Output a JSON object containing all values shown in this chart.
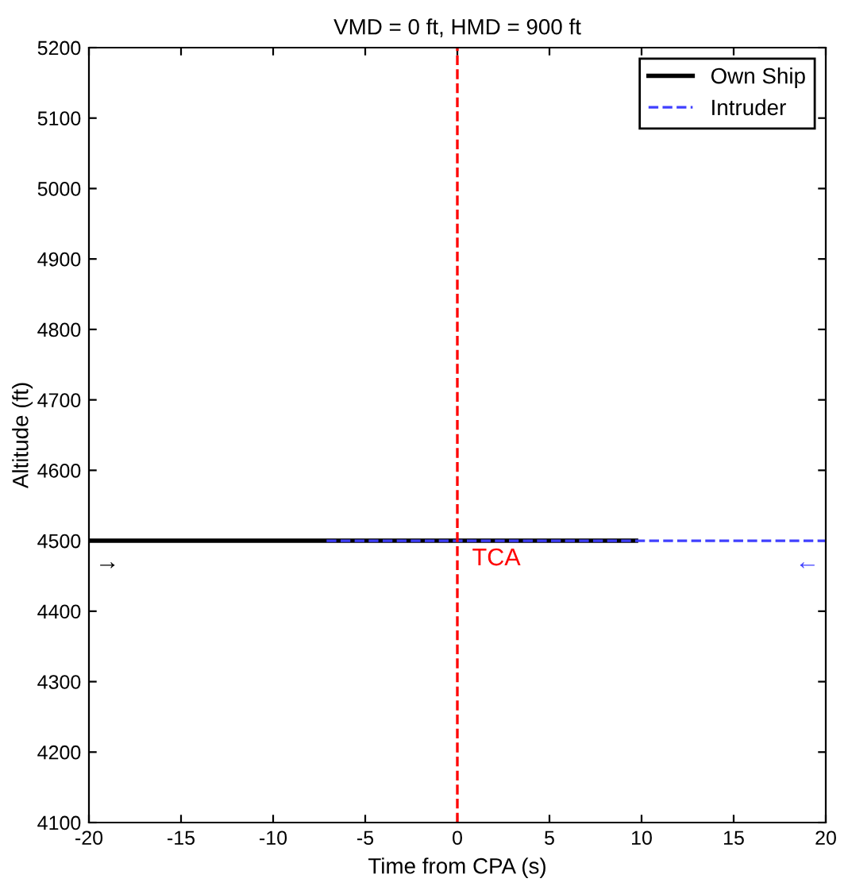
{
  "chart_data": {
    "type": "line",
    "title": "VMD = 0 ft, HMD = 900 ft",
    "xlabel": "Time from CPA (s)",
    "ylabel": "Altitude (ft)",
    "series": [
      {
        "name": "Own Ship",
        "color": "#000000",
        "x": [
          -20,
          9.7
        ],
        "values": [
          4500,
          4500
        ],
        "line_style": "solid"
      },
      {
        "name": "Intruder",
        "color": "#3f3fff",
        "x": [
          -7.1,
          20
        ],
        "values": [
          4500,
          4500
        ],
        "line_style": "dashed"
      }
    ],
    "annotations": [
      "→",
      "←"
    ],
    "ref_lines": [
      {
        "axis": "x",
        "value": 0,
        "label": "TCA",
        "color": "#ff0000",
        "line_style": "dashed"
      }
    ],
    "xlim": [
      -20,
      20
    ],
    "xticks": [
      -20,
      -15,
      -10,
      -5,
      0,
      5,
      10,
      15,
      20
    ],
    "ylim": [
      4100,
      5200
    ],
    "yticks": [
      4100,
      4200,
      4300,
      4400,
      4500,
      4600,
      4700,
      4800,
      4900,
      5000,
      5100,
      5200
    ],
    "grid": false,
    "legend": "top right",
    "marker": "none"
  }
}
